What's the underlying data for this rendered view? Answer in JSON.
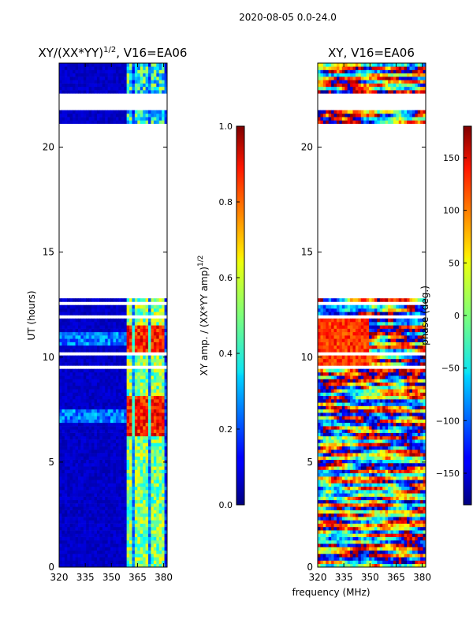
{
  "figure": {
    "suptitle": "2020-08-05 0.0-24.0",
    "shared_xlabel": "frequency (MHz)"
  },
  "chart_data": [
    {
      "type": "heatmap",
      "title_main": "XY/(XX*YY)",
      "title_exp": "1/2",
      "title_tail": ", V16=EA06",
      "xlabel": "",
      "ylabel": "UT (hours)",
      "xlim": [
        320,
        382
      ],
      "ylim": [
        0,
        24
      ],
      "xticks": [
        320,
        335,
        350,
        365,
        380
      ],
      "yticks": [
        0,
        5,
        10,
        15,
        20
      ],
      "colorbar": {
        "label_main": "XY amp. / (XX*YY amp)",
        "label_exp": "1/2",
        "range": [
          0.0,
          1.0
        ],
        "ticks": [
          "0.0",
          "0.2",
          "0.4",
          "0.6",
          "0.8",
          "1.0"
        ],
        "colormap": "jet"
      },
      "data_gaps_hours": [
        [
          12.8,
          21.1
        ]
      ],
      "description": "low coherence (~0.05) across 320-358 MHz; high values (0.4-0.95) in 360-380 MHz channels"
    },
    {
      "type": "heatmap",
      "title_main": "XY, V16=EA06",
      "xlabel": "frequency (MHz)",
      "ylabel": "",
      "xlim": [
        320,
        382
      ],
      "ylim": [
        0,
        24
      ],
      "xticks": [
        320,
        335,
        350,
        365,
        380
      ],
      "yticks": [
        0,
        5,
        10,
        15,
        20
      ],
      "colorbar": {
        "label_main": "phase (deg.)",
        "range": [
          -180,
          180
        ],
        "ticks": [
          "150",
          "100",
          "50",
          "0",
          "−50",
          "−100",
          "−150"
        ],
        "tick_values": [
          150,
          100,
          50,
          0,
          -50,
          -100,
          -150
        ],
        "colormap": "jet"
      },
      "data_gaps_hours": [
        [
          12.8,
          21.1
        ]
      ],
      "description": "XY phase across full band, noisy random phase with structure"
    }
  ]
}
